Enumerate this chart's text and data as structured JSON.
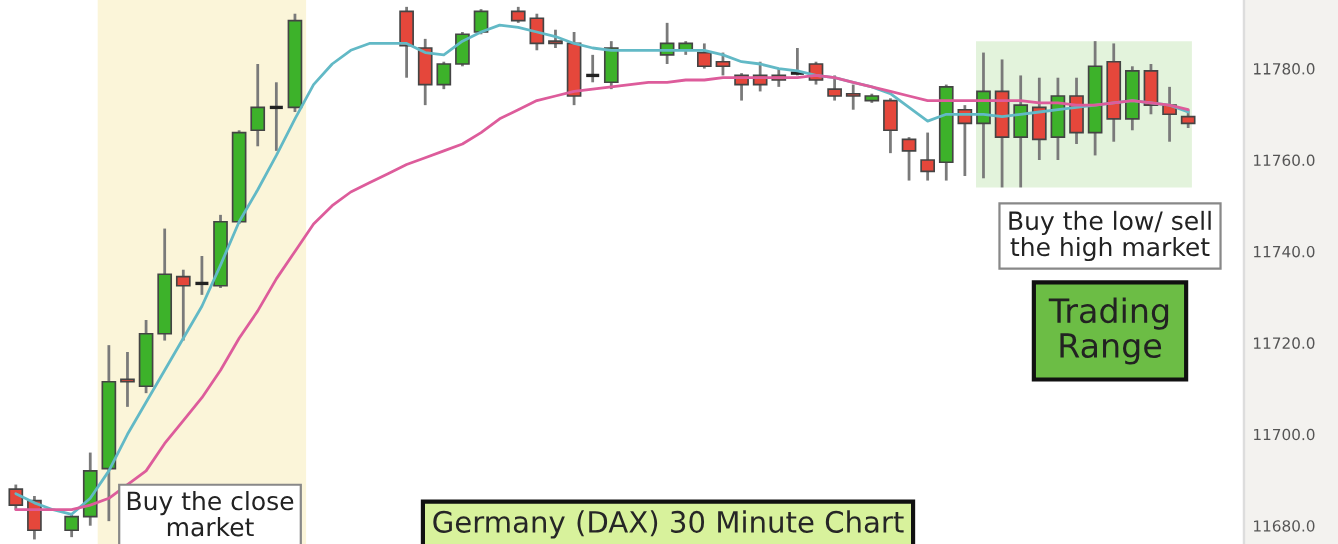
{
  "chart_data": [
    {
      "type": "candlestick",
      "title": "Germany (DAX) 30 Minute Chart",
      "annotations": [
        "Buy the close\nmarket",
        "Buy the low/ sell\nthe high market",
        "Trading\nRange"
      ],
      "categories": [
        null,
        null,
        null,
        null,
        null,
        null,
        null,
        null,
        null,
        null,
        null,
        null,
        null,
        null,
        null,
        null,
        null,
        null,
        null,
        null,
        null,
        null,
        null,
        null,
        null,
        null,
        null,
        null,
        null,
        null,
        null,
        null,
        null,
        null,
        null,
        null,
        null,
        null,
        null,
        null,
        null,
        null,
        null,
        null,
        null,
        null,
        null,
        null,
        null,
        null,
        null,
        null,
        null,
        null,
        null,
        null,
        null,
        null,
        null,
        null,
        null,
        null,
        null,
        null
      ],
      "ohlc": [
        [
          11688,
          11689,
          11683.5,
          11684.5
        ],
        [
          11685.5,
          11686.5,
          11677,
          11679
        ],
        null,
        [
          11679,
          11682.5,
          11677.5,
          11682
        ],
        [
          11682,
          11696,
          11680,
          11692
        ],
        [
          11692.5,
          11719.5,
          11681,
          11711.5
        ],
        [
          11712,
          11718,
          11706,
          11711.5
        ],
        [
          11710.5,
          11725,
          11709,
          11722
        ],
        [
          11722,
          11745,
          11720.5,
          11735
        ],
        [
          11734.5,
          11736,
          11720.5,
          11732.5
        ],
        [
          11733,
          11739,
          11730.5,
          11733
        ],
        [
          11732.5,
          11748,
          11732,
          11746.5
        ],
        [
          11746.5,
          11766.5,
          11746,
          11766
        ],
        [
          11766.5,
          11781,
          11763,
          11771.5
        ],
        [
          11771.5,
          11777,
          11762,
          11771.5
        ],
        [
          11771.5,
          11792,
          11770.5,
          11790.5
        ],
        null,
        null,
        null,
        null,
        null,
        [
          11792.5,
          11793.5,
          11778,
          11785
        ],
        [
          11784.5,
          11786.5,
          11772,
          11776.5
        ],
        [
          11776.5,
          11781.5,
          11775.5,
          11781
        ],
        [
          11781,
          11788,
          11780.5,
          11787.5
        ],
        [
          11788,
          11793,
          11787.5,
          11792.5
        ],
        null,
        [
          11792.5,
          11793.5,
          11790,
          11790.5
        ],
        [
          11791,
          11792,
          11784,
          11785.5
        ],
        [
          11786,
          11788.5,
          11784.5,
          11785.5
        ],
        [
          11785.5,
          11788,
          11772,
          11774
        ],
        [
          11778.5,
          11783,
          11777,
          11778.5
        ],
        [
          11777,
          11786,
          11775.5,
          11784.5
        ],
        null,
        null,
        [
          11783,
          11790,
          11781,
          11785.5
        ],
        [
          11784,
          11786,
          11783,
          11785.5
        ],
        [
          11783.5,
          11785.5,
          11780,
          11780.5
        ],
        [
          11781.5,
          11783.5,
          11778.5,
          11780.5
        ],
        [
          11778.5,
          11779,
          11773,
          11776.5
        ],
        [
          11778.5,
          11781.5,
          11775,
          11776.5
        ],
        [
          11778.5,
          11780,
          11776,
          11777.5
        ],
        [
          11779,
          11784.5,
          11778.5,
          11779
        ],
        [
          11781,
          11781.5,
          11776.5,
          11777.5
        ],
        [
          11775.5,
          11778.5,
          11773,
          11774
        ],
        [
          11774.5,
          11776.5,
          11771,
          11774
        ],
        [
          11773,
          11774.5,
          11772.5,
          11774
        ],
        [
          11773,
          11773.5,
          11761.5,
          11766.5
        ],
        [
          11764.5,
          11765,
          11755.5,
          11762
        ],
        [
          11760,
          11766,
          11755.5,
          11757.5
        ],
        [
          11759.5,
          11776.5,
          11755.5,
          11776
        ],
        [
          11771,
          11772,
          11756.5,
          11768
        ],
        [
          11768,
          11783.5,
          11756,
          11775
        ],
        [
          11775,
          11782,
          11754,
          11765
        ],
        [
          11765,
          11778.5,
          11754,
          11772
        ],
        [
          11771.5,
          11778,
          11760,
          11764.5
        ],
        [
          11765,
          11778,
          11760,
          11774
        ],
        [
          11774,
          11778,
          11763.5,
          11766
        ],
        [
          11766,
          11786,
          11761,
          11780.5
        ],
        [
          11781.5,
          11785.5,
          11764,
          11769
        ],
        [
          11769,
          11780.5,
          11766.5,
          11779.5
        ],
        [
          11779.5,
          11781,
          11770,
          11772
        ],
        [
          11772,
          11776,
          11764,
          11770
        ],
        [
          11769.5,
          11771,
          11767,
          11768
        ]
      ],
      "colors": [
        "#e5473b",
        "#e5473b",
        null,
        "#3db22a",
        "#3db22a",
        "#3db22a",
        "#e5473b",
        "#3db22a",
        "#3db22a",
        "#e5473b",
        "#222222",
        "#3db22a",
        "#3db22a",
        "#3db22a",
        "#222222",
        "#3db22a",
        null,
        null,
        null,
        null,
        null,
        "#e5473b",
        "#e5473b",
        "#3db22a",
        "#3db22a",
        "#3db22a",
        null,
        "#e5473b",
        "#e5473b",
        "#e5473b",
        "#e5473b",
        "#222222",
        "#3db22a",
        null,
        null,
        "#3db22a",
        "#3db22a",
        "#e5473b",
        "#e5473b",
        "#e5473b",
        "#e5473b",
        "#e5473b",
        "#222222",
        "#e5473b",
        "#e5473b",
        "#e5473b",
        "#3db22a",
        "#e5473b",
        "#e5473b",
        "#e5473b",
        "#3db22a",
        "#e5473b",
        "#3db22a",
        "#e5473b",
        "#3db22a",
        "#e5473b",
        "#3db22a",
        "#e5473b",
        "#3db22a",
        "#e5473b",
        "#3db22a",
        "#e5473b",
        "#e5473b",
        "#e5473b"
      ],
      "ylim": [
        11676,
        11795
      ],
      "yticks": [
        {
          "value": 11680,
          "label": "11680.0"
        },
        {
          "value": 11700,
          "label": "11700.0"
        },
        {
          "value": 11720,
          "label": "11720.0"
        },
        {
          "value": 11740,
          "label": "11740.0"
        },
        {
          "value": 11760,
          "label": "11760.0"
        },
        {
          "value": 11780,
          "label": "11780.0"
        }
      ],
      "tick_labels": "y"
    },
    {
      "type": "line",
      "categories": [
        null,
        null,
        null,
        null,
        null,
        null,
        null,
        null,
        null,
        null,
        null,
        null,
        null,
        null,
        null,
        null,
        null,
        null,
        null,
        null,
        null,
        null,
        null,
        null,
        null,
        null,
        null,
        null,
        null,
        null,
        null,
        null,
        null,
        null,
        null,
        null,
        null,
        null,
        null,
        null,
        null,
        null,
        null,
        null,
        null,
        null,
        null,
        null,
        null,
        null,
        null,
        null,
        null,
        null,
        null,
        null,
        null,
        null,
        null,
        null,
        null,
        null,
        null,
        null
      ],
      "series": [
        {
          "color": "#62b9c6",
          "values": [
            11687,
            11685,
            11683.5,
            11682.5,
            11686,
            11692,
            11700,
            11707,
            11714,
            11721,
            11728,
            11737,
            11746.5,
            11753.5,
            11761,
            11769,
            11776.5,
            11781,
            11784,
            11785.5,
            11785.5,
            11785.5,
            11783.5,
            11783,
            11786,
            11788,
            11789.5,
            11789,
            11788,
            11787,
            11785.5,
            11784.5,
            11784,
            11784,
            11784,
            11784,
            11784,
            11784,
            11783,
            11781.5,
            11781,
            11780,
            11779.5,
            11778.5,
            11778,
            11777,
            11776,
            11774.5,
            11771.5,
            11768.5,
            11770,
            11770,
            11770,
            11769.5,
            11770,
            11770.5,
            11771,
            11771.5,
            11772,
            11772.5,
            11773,
            11772.5,
            11772,
            11770.5
          ]
        },
        {
          "color": "#dd5c9b",
          "values": [
            11683.5,
            11683.5,
            11683.5,
            11683.5,
            11684.5,
            11686,
            11689,
            11692,
            11698,
            11703,
            11708,
            11714,
            11721,
            11727,
            11734,
            11740,
            11746,
            11750,
            11753,
            11755,
            11757,
            11759,
            11760.5,
            11762,
            11763.5,
            11766,
            11769,
            11771,
            11773,
            11774,
            11775,
            11775.5,
            11776,
            11776.5,
            11777,
            11777,
            11777.5,
            11777.5,
            11778,
            11778,
            11778,
            11778,
            11778,
            11778.5,
            11778,
            11777,
            11776,
            11775,
            11774,
            11773,
            11773,
            11773,
            11773,
            11773,
            11773,
            11772.5,
            11772.5,
            11772,
            11772,
            11772.5,
            11773,
            11772.5,
            11772,
            11771
          ]
        }
      ],
      "ylim": [
        11676,
        11795
      ],
      "tick_labels": false
    }
  ]
}
